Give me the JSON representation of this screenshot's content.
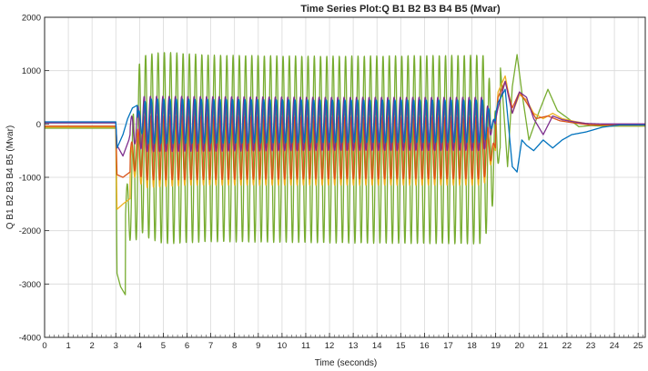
{
  "chart_data": {
    "type": "line",
    "title": "Time Series Plot:Q B1 B2 B3 B4 B5 (Mvar)",
    "xlabel": "Time (seconds)",
    "ylabel": "Q B1 B2 B3 B4 B5 (Mvar)",
    "xlim": [
      0,
      25.3
    ],
    "ylim": [
      -4000,
      2000
    ],
    "xticks": [
      0,
      1,
      2,
      3,
      4,
      5,
      6,
      7,
      8,
      9,
      10,
      11,
      12,
      13,
      14,
      15,
      16,
      17,
      18,
      19,
      20,
      21,
      22,
      23,
      24,
      25
    ],
    "yticks": [
      -4000,
      -3000,
      -2000,
      -1000,
      0,
      1000,
      2000
    ],
    "grid": true,
    "series": [
      {
        "color": "#77ac30",
        "x": [
          0,
          3.0,
          3.05,
          3.2,
          3.4,
          3.55,
          3.7,
          3.85,
          4.0,
          4.3,
          4.8,
          5.5,
          7,
          9,
          11,
          13,
          15,
          17,
          18.3,
          18.6,
          18.9,
          19.1,
          19.3,
          19.5,
          19.7,
          19.9,
          20.1,
          20.4,
          20.8,
          21.2,
          21.6,
          22.0,
          22.5,
          23.0,
          23.5,
          24,
          25.3
        ],
        "values": [
          -80,
          -80,
          -2800,
          -3050,
          -3200,
          -2500,
          -1200,
          200,
          1000,
          1250,
          1500,
          1400,
          1300,
          1300,
          1300,
          1300,
          1300,
          1300,
          1300,
          1400,
          1500,
          1600,
          500,
          -800,
          700,
          1300,
          600,
          -300,
          200,
          650,
          250,
          120,
          -50,
          -30,
          -40,
          -40,
          -40
        ],
        "envelope": {
          "amp": [
            [
              3.4,
              300
            ],
            [
              3.8,
              1400
            ],
            [
              4.2,
              1700
            ],
            [
              5.0,
              1800
            ],
            [
              7,
              1750
            ],
            [
              11,
              1750
            ],
            [
              15,
              1760
            ],
            [
              18.5,
              1770
            ],
            [
              18.9,
              1000
            ],
            [
              19.2,
              0
            ]
          ],
          "mid": [
            [
              3.4,
              -1800
            ],
            [
              4.0,
              -400
            ],
            [
              5.0,
              -450
            ],
            [
              12,
              -480
            ],
            [
              18.5,
              -480
            ],
            [
              19.2,
              -450
            ]
          ],
          "freq": 3.8,
          "start": 3.4,
          "end": 19.2
        }
      },
      {
        "color": "#edb120",
        "x": [
          0,
          3.0,
          3.05,
          3.3,
          3.6,
          3.8,
          4.0,
          4.4,
          18.5,
          18.8,
          19.1,
          19.4,
          19.7,
          20.0,
          20.3,
          20.6,
          21.0,
          21.4,
          21.8,
          22.3,
          22.8,
          23.4,
          24,
          25.3
        ],
        "values": [
          -60,
          -60,
          -1600,
          -1500,
          -1400,
          -900,
          -400,
          -200,
          -200,
          -1200,
          600,
          900,
          200,
          550,
          450,
          200,
          100,
          200,
          100,
          50,
          10,
          -20,
          -30,
          -30
        ],
        "envelope": {
          "amp": [
            [
              3.6,
              200
            ],
            [
              4.2,
              700
            ],
            [
              6,
              650
            ],
            [
              12,
              650
            ],
            [
              18.5,
              650
            ],
            [
              19.0,
              0
            ]
          ],
          "mid": [
            [
              3.6,
              -700
            ],
            [
              4.2,
              -500
            ],
            [
              18.5,
              -500
            ]
          ],
          "freq": 3.8,
          "start": 3.6,
          "end": 19.0
        }
      },
      {
        "color": "#d95319",
        "x": [
          0,
          3.0,
          3.05,
          3.3,
          3.6,
          4.0,
          18.5,
          18.8,
          19.1,
          19.4,
          19.7,
          20.0,
          20.3,
          20.7,
          21.2,
          21.7,
          22.3,
          23,
          25.3
        ],
        "values": [
          -40,
          -40,
          -950,
          -1000,
          -900,
          -300,
          -300,
          -1000,
          500,
          800,
          300,
          600,
          400,
          100,
          150,
          60,
          20,
          -20,
          -20
        ],
        "envelope": {
          "amp": [
            [
              3.6,
              200
            ],
            [
              4.2,
              600
            ],
            [
              12,
              580
            ],
            [
              18.5,
              580
            ],
            [
              19.0,
              0
            ]
          ],
          "mid": [
            [
              3.6,
              -600
            ],
            [
              4.2,
              -450
            ],
            [
              18.5,
              -450
            ]
          ],
          "freq": 3.8,
          "start": 3.6,
          "end": 19.0
        }
      },
      {
        "color": "#7e2f8e",
        "x": [
          0,
          3.0,
          3.05,
          3.3,
          3.55,
          3.8,
          4.2,
          18.5,
          18.8,
          19.1,
          19.4,
          19.7,
          20.0,
          20.3,
          20.6,
          21.0,
          21.4,
          21.8,
          22.3,
          22.8,
          23.5,
          25.3
        ],
        "values": [
          20,
          20,
          -400,
          -600,
          -300,
          200,
          100,
          100,
          -300,
          300,
          800,
          200,
          600,
          500,
          100,
          -200,
          150,
          80,
          40,
          10,
          0,
          0
        ],
        "envelope": {
          "amp": [
            [
              3.6,
              200
            ],
            [
              4.2,
              520
            ],
            [
              12,
              500
            ],
            [
              18.5,
              500
            ],
            [
              19.0,
              0
            ]
          ],
          "mid": [
            [
              3.6,
              -100
            ],
            [
              4.2,
              0
            ],
            [
              18.5,
              0
            ]
          ],
          "freq": 3.8,
          "start": 3.6,
          "end": 19.0
        }
      },
      {
        "color": "#0072bd",
        "x": [
          0,
          3.0,
          3.05,
          3.3,
          3.5,
          3.7,
          3.9,
          4.2,
          18.5,
          18.8,
          19.1,
          19.4,
          19.7,
          19.9,
          20.1,
          20.3,
          20.6,
          21.0,
          21.4,
          21.8,
          22.2,
          22.8,
          23.5,
          24.2,
          25.3
        ],
        "values": [
          40,
          40,
          -450,
          -200,
          100,
          300,
          350,
          200,
          200,
          -200,
          400,
          650,
          -800,
          -900,
          -300,
          -400,
          -500,
          -300,
          -450,
          -300,
          -200,
          -150,
          -60,
          -20,
          -20
        ],
        "envelope": {
          "amp": [
            [
              3.9,
              100
            ],
            [
              4.3,
              420
            ],
            [
              12,
              400
            ],
            [
              18.5,
              400
            ],
            [
              19.0,
              0
            ]
          ],
          "mid": [
            [
              3.9,
              100
            ],
            [
              4.3,
              50
            ],
            [
              18.5,
              50
            ]
          ],
          "freq": 3.8,
          "start": 3.9,
          "end": 19.0
        }
      }
    ]
  }
}
